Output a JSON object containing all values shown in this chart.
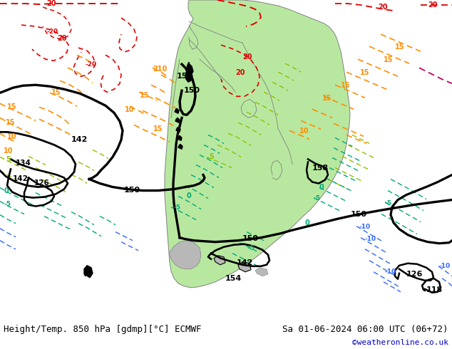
{
  "title_left": "Height/Temp. 850 hPa [gdmp][°C] ECMWF",
  "title_right": "Sa 01-06-2024 06:00 UTC (06+72)",
  "credit": "©weatheronline.co.uk",
  "bg_color": "#d0d0d0",
  "land_color": "#b8e8a0",
  "border_color": "#808080",
  "fig_width": 6.34,
  "fig_height": 4.9,
  "dpi": 100
}
